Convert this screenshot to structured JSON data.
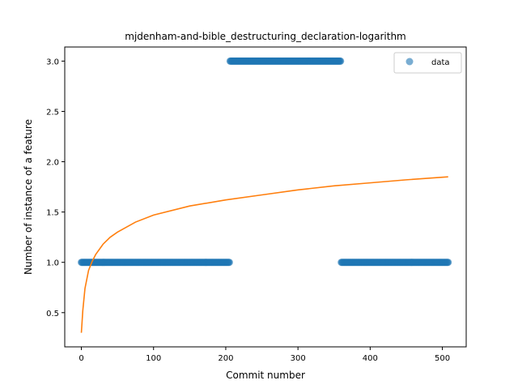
{
  "chart_data": {
    "type": "scatter",
    "title": "mjdenham-and-bible_destructuring_declaration-logarithm",
    "xlabel": "Commit number",
    "ylabel": "Number of instance of a feature",
    "xlim": [
      -23,
      533
    ],
    "ylim": [
      0.16,
      3.14
    ],
    "xticks": [
      0,
      100,
      200,
      300,
      400,
      500
    ],
    "yticks": [
      0.5,
      1.0,
      1.5,
      2.0,
      2.5,
      3.0
    ],
    "xtick_labels": [
      "0",
      "100",
      "200",
      "300",
      "400",
      "500"
    ],
    "ytick_labels": [
      "0.5",
      "1.0",
      "1.5",
      "2.0",
      "2.5",
      "3.0"
    ],
    "grid": false,
    "legend": {
      "placement": "top-right",
      "entries": [
        "data"
      ]
    },
    "series": [
      {
        "name": "data",
        "kind": "scatter",
        "color": "#1f77b4",
        "segments": [
          {
            "x_start": 0,
            "x_end": 205,
            "y": 1
          },
          {
            "x_start": 206,
            "x_end": 359,
            "y": 3
          },
          {
            "x_start": 360,
            "x_end": 508,
            "y": 1
          }
        ]
      },
      {
        "kind": "line",
        "color": "#ff7f0e",
        "x_start": 0,
        "x_end": 508,
        "points": [
          [
            0,
            0.3
          ],
          [
            2,
            0.52
          ],
          [
            5,
            0.74
          ],
          [
            10,
            0.92
          ],
          [
            15,
            1.01
          ],
          [
            20,
            1.08
          ],
          [
            30,
            1.18
          ],
          [
            40,
            1.25
          ],
          [
            50,
            1.3
          ],
          [
            75,
            1.4
          ],
          [
            100,
            1.47
          ],
          [
            150,
            1.56
          ],
          [
            200,
            1.62
          ],
          [
            250,
            1.67
          ],
          [
            300,
            1.72
          ],
          [
            350,
            1.76
          ],
          [
            400,
            1.79
          ],
          [
            450,
            1.82
          ],
          [
            508,
            1.85
          ]
        ]
      }
    ]
  }
}
